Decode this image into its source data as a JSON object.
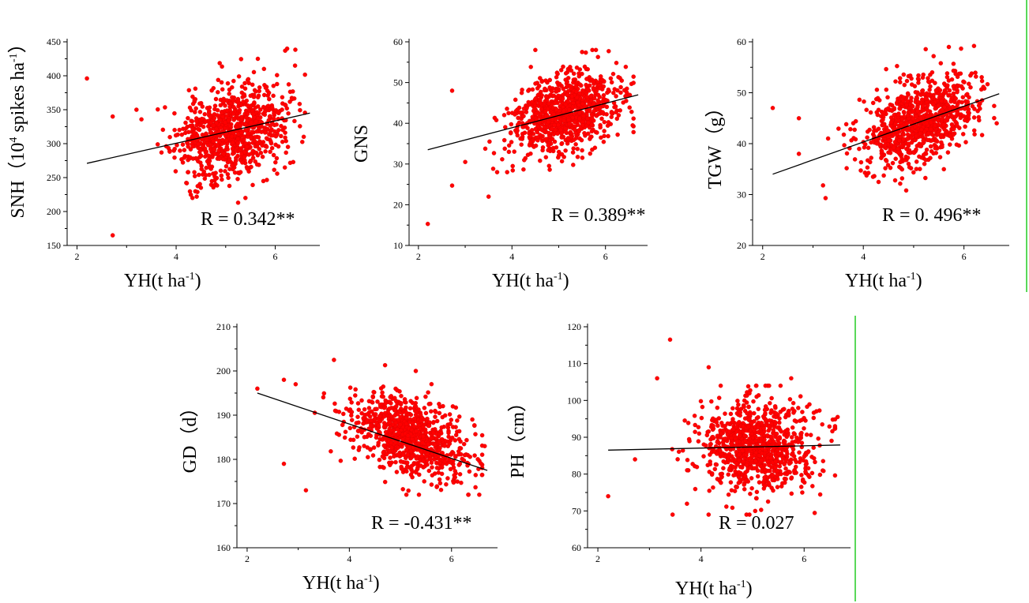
{
  "figure": {
    "divider_color": "#22cc22",
    "point_color": "#ff0000",
    "point_stroke": "#d00000",
    "fit_line_color": "#000000"
  },
  "chart_data": [
    {
      "id": "snh",
      "type": "scatter",
      "xlabel_main": "YH(t ha",
      "xlabel_sup": "-1",
      "xlabel_tail": ")",
      "ylabel_parts": [
        "SNH（10",
        "4",
        " spikes ha",
        "-1",
        "）"
      ],
      "r_text": "R = 0.342**",
      "xlim": [
        1.8,
        6.9
      ],
      "ylim": [
        150,
        450
      ],
      "xticks": [
        2,
        4,
        6
      ],
      "yticks": [
        150,
        200,
        250,
        300,
        350,
        400,
        450
      ],
      "fit": [
        [
          2.2,
          271
        ],
        [
          6.7,
          345
        ]
      ],
      "center": [
        5.1,
        318
      ],
      "spread": [
        0.55,
        33
      ],
      "slope": 16.44,
      "n": 900,
      "seed": 11,
      "y_range": [
        220,
        440
      ],
      "extra_points": [
        [
          2.2,
          396
        ],
        [
          2.72,
          340
        ],
        [
          2.72,
          165
        ],
        [
          3.2,
          350
        ],
        [
          5.25,
          213
        ],
        [
          6.2,
          437
        ],
        [
          4.5,
          235
        ],
        [
          6.4,
          415
        ]
      ]
    },
    {
      "id": "gns",
      "type": "scatter",
      "xlabel_main": "YH(t ha",
      "xlabel_sup": "-1",
      "xlabel_tail": ")",
      "ylabel_parts": [
        "GNS"
      ],
      "r_text": "R = 0.389**",
      "xlim": [
        1.8,
        6.9
      ],
      "ylim": [
        10,
        60
      ],
      "xticks": [
        2,
        4,
        6
      ],
      "yticks": [
        10,
        20,
        30,
        40,
        50,
        60
      ],
      "fit": [
        [
          2.2,
          33.5
        ],
        [
          6.7,
          47
        ]
      ],
      "center": [
        5.1,
        42.2
      ],
      "spread": [
        0.55,
        4.6
      ],
      "slope": 3.0,
      "n": 900,
      "seed": 23,
      "y_range": [
        28,
        58
      ],
      "extra_points": [
        [
          2.2,
          15.3
        ],
        [
          2.72,
          48
        ],
        [
          2.72,
          24.7
        ],
        [
          3.5,
          22
        ],
        [
          4.5,
          58
        ],
        [
          5.5,
          57.5
        ],
        [
          3.0,
          30.5
        ]
      ]
    },
    {
      "id": "tgw",
      "type": "scatter",
      "xlabel_main": "YH(t ha",
      "xlabel_sup": "-1",
      "xlabel_tail": ")",
      "ylabel_parts": [
        "TGW（g）"
      ],
      "r_text": "R = 0. 496**",
      "xlim": [
        1.8,
        6.9
      ],
      "ylim": [
        20,
        60
      ],
      "xticks": [
        2,
        4,
        6
      ],
      "yticks": [
        20,
        30,
        40,
        50,
        60
      ],
      "fit": [
        [
          2.2,
          34
        ],
        [
          6.7,
          49.8
        ]
      ],
      "center": [
        5.1,
        44.5
      ],
      "spread": [
        0.55,
        4.0
      ],
      "slope": 3.51,
      "n": 900,
      "seed": 37,
      "y_range": [
        29,
        59
      ],
      "extra_points": [
        [
          2.2,
          47
        ],
        [
          2.72,
          38
        ],
        [
          2.72,
          45
        ],
        [
          3.2,
          31.8
        ],
        [
          3.25,
          29.3
        ],
        [
          6.2,
          59.2
        ],
        [
          5.7,
          59
        ],
        [
          6.65,
          44
        ]
      ]
    },
    {
      "id": "gd",
      "type": "scatter",
      "xlabel_main": "YH(t ha",
      "xlabel_sup": "-1",
      "xlabel_tail": ")",
      "ylabel_parts": [
        "GD（d）"
      ],
      "r_text": "R = -0.431**",
      "xlim": [
        1.8,
        6.9
      ],
      "ylim": [
        160,
        210
      ],
      "xticks": [
        2,
        4,
        6
      ],
      "yticks": [
        160,
        170,
        180,
        190,
        200,
        210
      ],
      "fit": [
        [
          2.2,
          195
        ],
        [
          6.7,
          177.5
        ]
      ],
      "center": [
        5.2,
        185
      ],
      "spread": [
        0.55,
        4.2
      ],
      "slope": -3.89,
      "n": 900,
      "seed": 53,
      "y_range": [
        172,
        202
      ],
      "extra_points": [
        [
          2.2,
          196
        ],
        [
          2.72,
          198
        ],
        [
          2.72,
          179
        ],
        [
          3.15,
          173
        ],
        [
          3.7,
          202.5
        ],
        [
          4.7,
          201.3
        ],
        [
          5.3,
          200
        ],
        [
          6.65,
          183
        ],
        [
          6.6,
          176.5
        ],
        [
          2.95,
          197
        ]
      ]
    },
    {
      "id": "ph",
      "type": "scatter",
      "xlabel_main": "YH(t ha",
      "xlabel_sup": "-1",
      "xlabel_tail": ")",
      "ylabel_parts": [
        "PH（cm）"
      ],
      "r_text": "R = 0.027",
      "xlim": [
        1.8,
        6.9
      ],
      "ylim": [
        60,
        120
      ],
      "xticks": [
        2,
        4,
        6
      ],
      "yticks": [
        60,
        70,
        80,
        90,
        100,
        110,
        120
      ],
      "fit": [
        [
          2.2,
          86.5
        ],
        [
          6.7,
          87.9
        ]
      ],
      "center": [
        5.1,
        87.3
      ],
      "spread": [
        0.55,
        6.2
      ],
      "slope": 0.3,
      "n": 900,
      "seed": 71,
      "y_range": [
        69,
        104
      ],
      "extra_points": [
        [
          2.2,
          74
        ],
        [
          3.4,
          116.5
        ],
        [
          4.15,
          109
        ],
        [
          3.15,
          106
        ],
        [
          5.75,
          106
        ],
        [
          2.72,
          84
        ],
        [
          6.65,
          95.5
        ],
        [
          3.45,
          69
        ]
      ]
    }
  ]
}
